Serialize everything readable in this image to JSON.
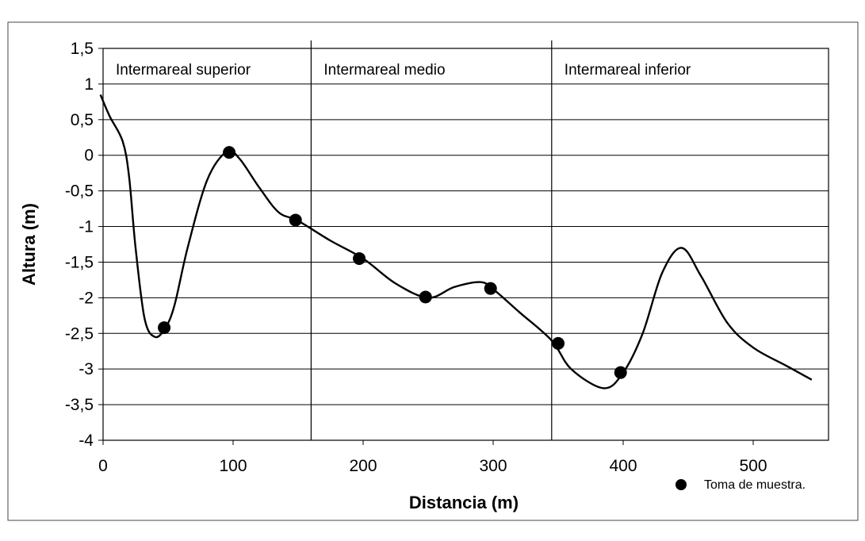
{
  "chart_data": {
    "type": "line",
    "title": "",
    "xlabel": "Distancia (m)",
    "ylabel": "Altura (m)",
    "xlim": [
      0,
      550
    ],
    "ylim": [
      -4,
      1.5
    ],
    "x_ticks": [
      0,
      100,
      200,
      300,
      400,
      500
    ],
    "x_tick_labels": [
      "0",
      "100",
      "200",
      "300",
      "400",
      "500"
    ],
    "y_ticks": [
      1.5,
      1,
      0.5,
      0,
      -0.5,
      -1,
      -1.5,
      -2,
      -2.5,
      -3,
      -3.5,
      -4
    ],
    "y_tick_labels": [
      "1,5",
      "1",
      "0,5",
      "0",
      "-0,5",
      "-1",
      "-1,5",
      "-2",
      "-2,5",
      "-3",
      "-3,5",
      "-4"
    ],
    "grid": "horizontal",
    "zones": [
      {
        "label": "Intermareal superior",
        "from": 0,
        "to": 160
      },
      {
        "label": "Intermareal medio",
        "from": 160,
        "to": 345
      },
      {
        "label": "Intermareal inferior",
        "from": 345,
        "to": 550
      }
    ],
    "series": [
      {
        "name": "",
        "x": [
          -2,
          5,
          15,
          20,
          25,
          32,
          40,
          48,
          55,
          65,
          80,
          95,
          105,
          120,
          135,
          150,
          175,
          200,
          225,
          250,
          270,
          290,
          300,
          320,
          345,
          360,
          385,
          400,
          415,
          430,
          445,
          460,
          480,
          500,
          525,
          545
        ],
        "y": [
          0.85,
          0.55,
          0.2,
          -0.3,
          -1.3,
          -2.3,
          -2.55,
          -2.42,
          -2.1,
          -1.3,
          -0.35,
          0.05,
          -0.05,
          -0.45,
          -0.8,
          -0.92,
          -1.2,
          -1.45,
          -1.8,
          -2.0,
          -1.85,
          -1.78,
          -1.88,
          -2.2,
          -2.6,
          -3.0,
          -3.27,
          -3.05,
          -2.5,
          -1.65,
          -1.3,
          -1.7,
          -2.35,
          -2.7,
          -2.95,
          -3.15
        ]
      },
      {
        "name": "Toma de muestra.",
        "type": "scatter",
        "x": [
          47,
          97,
          148,
          197,
          248,
          298,
          350,
          398
        ],
        "y": [
          -2.42,
          0.04,
          -0.91,
          -1.45,
          -1.99,
          -1.87,
          -2.64,
          -3.05
        ]
      }
    ],
    "legend": "bottom-right"
  },
  "legend_label": "Toma de muestra."
}
